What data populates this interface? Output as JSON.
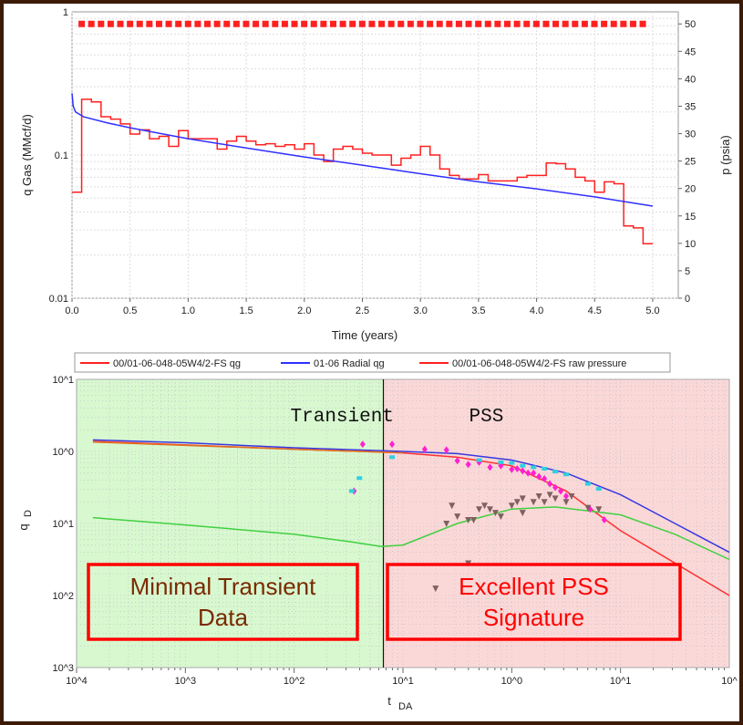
{
  "chart_data": [
    {
      "type": "line",
      "xlabel": "Time (years)",
      "ylabel": "q Gas (MMcf/d)",
      "y2label": "p (psia)",
      "xlim": [
        0,
        5.22
      ],
      "ylim": [
        0.01,
        1
      ],
      "y2lim": [
        0,
        52.2
      ],
      "yscale": "log",
      "grid": true,
      "xticks": [
        "0.0",
        "0.5",
        "1.0",
        "1.5",
        "2.0",
        "2.5",
        "3.0",
        "3.5",
        "4.0",
        "4.5",
        "5.0"
      ],
      "yticks": [
        "1",
        "0.1",
        "0.01"
      ],
      "y2ticks": [
        "0",
        "5",
        "10",
        "15",
        "20",
        "25",
        "30",
        "35",
        "40",
        "45",
        "50"
      ],
      "legend_position": "bottom",
      "series": [
        {
          "name": "00/01-06-048-05W4/2-FS qg",
          "kind": "step",
          "color": "#ff2020",
          "x": [
            0,
            0.083,
            0.167,
            0.25,
            0.333,
            0.417,
            0.5,
            0.583,
            0.667,
            0.75,
            0.833,
            0.917,
            1.0,
            1.083,
            1.167,
            1.25,
            1.333,
            1.417,
            1.5,
            1.583,
            1.667,
            1.75,
            1.833,
            1.917,
            2.0,
            2.083,
            2.167,
            2.25,
            2.333,
            2.417,
            2.5,
            2.583,
            2.667,
            2.75,
            2.833,
            2.917,
            3.0,
            3.083,
            3.167,
            3.25,
            3.333,
            3.417,
            3.5,
            3.583,
            3.667,
            3.75,
            3.833,
            3.917,
            4.0,
            4.083,
            4.167,
            4.25,
            4.333,
            4.417,
            4.5,
            4.583,
            4.667,
            4.75,
            4.833,
            4.917
          ],
          "y": [
            0.055,
            0.245,
            0.235,
            0.185,
            0.178,
            0.165,
            0.14,
            0.15,
            0.13,
            0.135,
            0.115,
            0.148,
            0.13,
            0.13,
            0.13,
            0.11,
            0.125,
            0.135,
            0.125,
            0.118,
            0.12,
            0.115,
            0.118,
            0.11,
            0.12,
            0.1,
            0.09,
            0.11,
            0.115,
            0.11,
            0.103,
            0.1,
            0.1,
            0.085,
            0.095,
            0.1,
            0.115,
            0.1,
            0.08,
            0.072,
            0.068,
            0.068,
            0.073,
            0.066,
            0.066,
            0.066,
            0.07,
            0.072,
            0.072,
            0.088,
            0.087,
            0.08,
            0.07,
            0.066,
            0.055,
            0.065,
            0.063,
            0.032,
            0.031,
            0.024
          ]
        },
        {
          "name": "01-06 Radial qg",
          "kind": "line",
          "color": "#3030ff",
          "x": [
            0,
            0.01,
            0.03,
            0.1,
            0.3,
            0.5,
            1.0,
            1.5,
            2.0,
            2.5,
            3.0,
            3.5,
            4.0,
            4.5,
            5.0
          ],
          "y": [
            0.27,
            0.22,
            0.2,
            0.185,
            0.168,
            0.155,
            0.13,
            0.112,
            0.097,
            0.085,
            0.074,
            0.065,
            0.058,
            0.051,
            0.044
          ]
        },
        {
          "name": "00/01-06-048-05W4/2-FS raw pressure",
          "kind": "markers",
          "color": "#ff2020",
          "axis": "right",
          "x_start": 0.083,
          "x_end": 4.917,
          "x_step": 0.0833,
          "y": 50
        }
      ]
    },
    {
      "type": "scatter",
      "xlabel": "t",
      "xlabel_sub": "DA",
      "ylabel": "q",
      "ylabel_sub": "D",
      "xscale": "log",
      "yscale": "log",
      "xlim_log10": [
        -4,
        2
      ],
      "ylim_log10": [
        -3,
        1
      ],
      "xticks": [
        "10^4",
        "10^3",
        "10^2",
        "10^1",
        "10^0",
        "10^1",
        "10^"
      ],
      "yticks": [
        "10^1",
        "10^0",
        "10^1",
        "10^2",
        "10^3"
      ],
      "divider_log10": -1.18,
      "regions": [
        {
          "label": "Transient",
          "color": "#d8f8d0"
        },
        {
          "label": "PSS",
          "color": "#fbd8d8"
        }
      ],
      "annotations": [
        {
          "text_lines": [
            "Minimal Transient",
            "Data"
          ],
          "color": "#7a2a00"
        },
        {
          "text_lines": [
            "Excellent PSS",
            "Signature"
          ],
          "color": "#ff0000"
        }
      ],
      "curves": [
        {
          "name": "blue",
          "color": "#3838e0",
          "x": [
            -3.85,
            -3,
            -2,
            -1,
            -0.5,
            0,
            0.5,
            1,
            1.5,
            2
          ],
          "y": [
            0.16,
            0.12,
            0.05,
            0.0,
            -0.03,
            -0.12,
            -0.3,
            -0.6,
            -1.0,
            -1.4
          ]
        },
        {
          "name": "red",
          "color": "#ff3030",
          "x": [
            -3.85,
            -3,
            -2,
            -1,
            -0.5,
            0,
            0.5,
            1,
            1.5,
            2
          ],
          "y": [
            0.14,
            0.09,
            0.03,
            -0.02,
            -0.08,
            -0.2,
            -0.55,
            -1.1,
            -1.55,
            -2.0
          ]
        },
        {
          "name": "orange",
          "color": "#e07020",
          "x": [
            -3.85,
            -2,
            -1
          ],
          "y": [
            0.13,
            0.03,
            -0.02
          ]
        },
        {
          "name": "green",
          "color": "#40d040",
          "x": [
            -3.85,
            -3,
            -2,
            -1.5,
            -1.2,
            -1,
            -0.5,
            0,
            0.4,
            1,
            1.5,
            2
          ],
          "y": [
            -0.92,
            -1.02,
            -1.15,
            -1.25,
            -1.32,
            -1.3,
            -1.0,
            -0.8,
            -0.77,
            -0.88,
            -1.15,
            -1.5
          ]
        }
      ],
      "points": [
        {
          "name": "diamond",
          "color": "#ff20d0",
          "x": [
            -1.45,
            -1.37,
            -1.1,
            -0.8,
            -0.6,
            -0.5,
            -0.4,
            -0.3,
            -0.2,
            -0.1,
            0,
            0.05,
            0.1,
            0.15,
            0.2,
            0.25,
            0.3,
            0.35,
            0.4,
            0.45,
            0.5,
            0.72,
            0.85
          ],
          "y": [
            -0.55,
            0.1,
            0.1,
            0.03,
            0.02,
            -0.13,
            -0.18,
            -0.15,
            -0.22,
            -0.2,
            -0.25,
            -0.24,
            -0.27,
            -0.3,
            -0.3,
            -0.35,
            -0.38,
            -0.45,
            -0.5,
            -0.55,
            -0.62,
            -0.8,
            -0.95
          ]
        },
        {
          "name": "square",
          "color": "#30d0e0",
          "x": [
            -1.47,
            -1.4,
            -1.1,
            -0.3,
            -0.1,
            0,
            0.1,
            0.2,
            0.3,
            0.4,
            0.5,
            0.7,
            0.8
          ],
          "y": [
            -0.55,
            -0.37,
            -0.08,
            -0.12,
            -0.15,
            -0.16,
            -0.2,
            -0.22,
            -0.24,
            -0.28,
            -0.32,
            -0.45,
            -0.52
          ]
        },
        {
          "name": "triangle",
          "color": "#806060",
          "x": [
            -0.55,
            -0.5,
            -0.4,
            -0.3,
            -0.25,
            -0.2,
            -0.15,
            -0.1,
            0,
            0.05,
            0.1,
            0.2,
            0.3,
            0.4,
            0.5,
            0.55,
            0.7,
            0.8,
            -0.6,
            -0.4,
            -0.7,
            -0.35,
            0.1,
            0.25,
            0.35
          ],
          "y": [
            -0.75,
            -0.9,
            -0.95,
            -0.8,
            -0.75,
            -0.8,
            -0.85,
            -0.9,
            -0.75,
            -0.7,
            -0.65,
            -0.7,
            -0.7,
            -0.65,
            -0.7,
            -0.62,
            -0.78,
            -0.8,
            -1.0,
            -1.55,
            -1.9,
            -0.95,
            -0.85,
            -0.62,
            -0.6
          ]
        }
      ]
    }
  ]
}
